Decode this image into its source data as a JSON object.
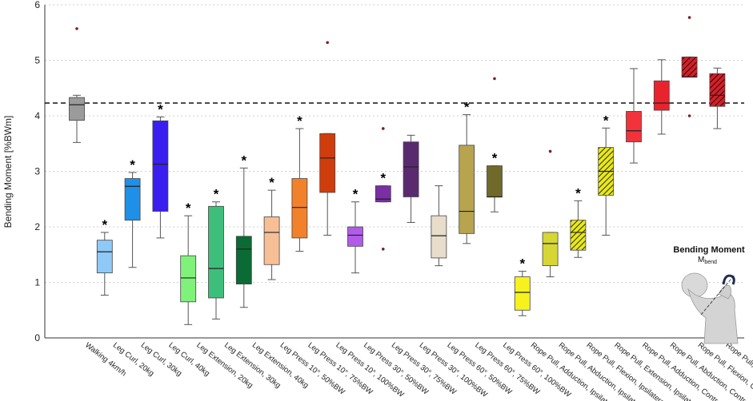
{
  "chart_data": {
    "type": "boxplot",
    "ylabel": "Bending Moment [%BWm]",
    "ylim": [
      0,
      6
    ],
    "yticks": [
      0,
      1,
      2,
      3,
      4,
      5,
      6
    ],
    "grid": "horizontal-dotted",
    "reference_line": 4.23,
    "inset": {
      "title": "Bending Moment",
      "subtitle_main": "M",
      "subtitle_sub": "bend"
    },
    "series": [
      {
        "label": "Walking 4km/h",
        "color": "#9b9b9b",
        "hatch": false,
        "min": 3.52,
        "q1": 3.92,
        "median": 4.2,
        "q3": 4.33,
        "max": 4.37,
        "outliers": [
          5.57
        ],
        "star": false
      },
      {
        "label": "Leg Curl, 20kg",
        "color": "#8fc9f7",
        "hatch": false,
        "min": 0.77,
        "q1": 1.17,
        "median": 1.55,
        "q3": 1.76,
        "max": 1.9,
        "outliers": [],
        "star": true
      },
      {
        "label": "Leg Curl, 30kg",
        "color": "#1e90e8",
        "hatch": false,
        "min": 1.27,
        "q1": 2.12,
        "median": 2.73,
        "q3": 2.87,
        "max": 2.98,
        "outliers": [],
        "star": true
      },
      {
        "label": "Leg Curl, 40kg",
        "color": "#3b1ef0",
        "hatch": false,
        "min": 1.8,
        "q1": 2.28,
        "median": 3.13,
        "q3": 3.91,
        "max": 3.98,
        "outliers": [],
        "star": true
      },
      {
        "label": "Leg Extension, 20kg",
        "color": "#7ff27a",
        "hatch": false,
        "min": 0.24,
        "q1": 0.65,
        "median": 1.08,
        "q3": 1.48,
        "max": 2.2,
        "outliers": [],
        "star": true
      },
      {
        "label": "Leg Extension, 30kg",
        "color": "#3dbf7b",
        "hatch": false,
        "min": 0.34,
        "q1": 0.72,
        "median": 1.25,
        "q3": 2.37,
        "max": 2.45,
        "outliers": [],
        "star": true
      },
      {
        "label": "Leg Extension, 40kg",
        "color": "#0b6b34",
        "hatch": false,
        "min": 0.55,
        "q1": 0.97,
        "median": 1.6,
        "q3": 1.83,
        "max": 3.06,
        "outliers": [],
        "star": true
      },
      {
        "label": "Leg Press 10°, 50%BW",
        "color": "#f7bf96",
        "hatch": false,
        "min": 1.05,
        "q1": 1.32,
        "median": 1.9,
        "q3": 2.18,
        "max": 2.66,
        "outliers": [],
        "star": true
      },
      {
        "label": "Leg Press 10°, 75%BW",
        "color": "#f2812c",
        "hatch": false,
        "min": 1.56,
        "q1": 1.8,
        "median": 2.35,
        "q3": 2.87,
        "max": 3.77,
        "outliers": [],
        "star": true
      },
      {
        "label": "Leg Press 10°, 100%BW",
        "color": "#cf3d0c",
        "hatch": false,
        "min": 1.85,
        "q1": 2.62,
        "median": 3.24,
        "q3": 3.68,
        "max": 3.68,
        "outliers": [
          5.32
        ],
        "star": false
      },
      {
        "label": "Leg Press 30°, 50%BW",
        "color": "#b15ce8",
        "hatch": false,
        "min": 1.17,
        "q1": 1.65,
        "median": 1.85,
        "q3": 2.0,
        "max": 2.45,
        "outliers": [],
        "star": true
      },
      {
        "label": "Leg Press 30°, 75%BW",
        "color": "#7a2fa3",
        "hatch": false,
        "min": 2.45,
        "q1": 2.45,
        "median": 2.5,
        "q3": 2.74,
        "max": 2.74,
        "outliers": [
          3.77,
          1.6
        ],
        "star": true
      },
      {
        "label": "Leg Press 30°, 100%BW",
        "color": "#5a2a6f",
        "hatch": false,
        "min": 2.08,
        "q1": 2.54,
        "median": 3.08,
        "q3": 3.53,
        "max": 3.65,
        "outliers": [],
        "star": false
      },
      {
        "label": "Leg Press 60°, 50%BW",
        "color": "#e8dccb",
        "hatch": false,
        "min": 1.3,
        "q1": 1.44,
        "median": 1.84,
        "q3": 2.2,
        "max": 2.74,
        "outliers": [],
        "star": false
      },
      {
        "label": "Leg Press 60°, 75%BW",
        "color": "#b8a34f",
        "hatch": false,
        "min": 1.7,
        "q1": 1.88,
        "median": 2.28,
        "q3": 3.47,
        "max": 4.02,
        "outliers": [],
        "star": true
      },
      {
        "label": "Leg Press 60°, 100%BW",
        "color": "#6f6a2a",
        "hatch": false,
        "min": 2.27,
        "q1": 2.54,
        "median": 2.54,
        "q3": 3.1,
        "max": 3.1,
        "outliers": [
          4.67
        ],
        "star": true
      },
      {
        "label": "Rope Pull, Adduction, Ipsilateral",
        "color": "#f7f21e",
        "hatch": false,
        "min": 0.4,
        "q1": 0.5,
        "median": 0.82,
        "q3": 1.1,
        "max": 1.2,
        "outliers": [],
        "star": true
      },
      {
        "label": "Rope Pull, Abduction, Ipsilateral",
        "color": "#d6d634",
        "hatch": false,
        "min": 1.1,
        "q1": 1.3,
        "median": 1.7,
        "q3": 1.9,
        "max": 1.9,
        "outliers": [
          3.36
        ],
        "star": false
      },
      {
        "label": "Rope Pull, Flexion, Ipsilateral",
        "color": "#e8e81a",
        "hatch": true,
        "min": 1.45,
        "q1": 1.58,
        "median": 1.9,
        "q3": 2.12,
        "max": 2.47,
        "outliers": [],
        "star": true
      },
      {
        "label": "Rope Pull, Extension, Ipsilateral",
        "color": "#e8e81a",
        "hatch": true,
        "min": 1.85,
        "q1": 2.57,
        "median": 3.0,
        "q3": 3.43,
        "max": 3.78,
        "outliers": [],
        "star": true
      },
      {
        "label": "Rope Pull, Adduction, Contralateral",
        "color": "#f2333c",
        "hatch": false,
        "min": 3.15,
        "q1": 3.53,
        "median": 3.73,
        "q3": 4.08,
        "max": 4.85,
        "outliers": [],
        "star": false
      },
      {
        "label": "Rope Pull, Abduction, Contralateral",
        "color": "#e8232e",
        "hatch": false,
        "min": 3.67,
        "q1": 4.1,
        "median": 4.23,
        "q3": 4.63,
        "max": 5.01,
        "outliers": [],
        "star": false
      },
      {
        "label": "Rope Pull, Flexion, Contralateral",
        "color": "#c21a24",
        "hatch": true,
        "min": 4.7,
        "q1": 4.7,
        "median": 4.7,
        "q3": 5.06,
        "max": 5.06,
        "outliers": [
          5.77,
          4.0
        ],
        "star": false
      },
      {
        "label": "Rope Pull, Extension, Contralateral",
        "color": "#d0212b",
        "hatch": true,
        "min": 3.77,
        "q1": 4.17,
        "median": 4.37,
        "q3": 4.76,
        "max": 4.86,
        "outliers": [],
        "star": false
      }
    ]
  }
}
